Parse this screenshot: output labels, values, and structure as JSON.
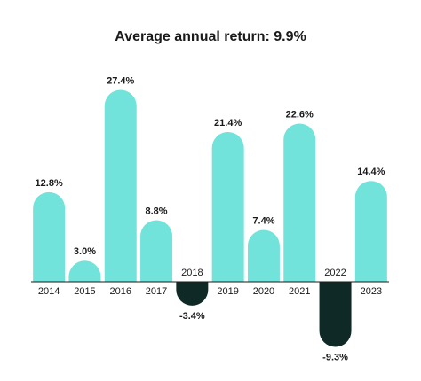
{
  "chart_data": {
    "type": "bar",
    "title": "Average annual return: 9.9%",
    "categories": [
      "2014",
      "2015",
      "2016",
      "2017",
      "2018",
      "2019",
      "2020",
      "2021",
      "2022",
      "2023"
    ],
    "values": [
      12.8,
      3.0,
      27.4,
      8.8,
      -3.4,
      21.4,
      7.4,
      22.6,
      -9.3,
      14.4
    ],
    "value_labels": [
      "12.8%",
      "3.0%",
      "27.4%",
      "8.8%",
      "-3.4%",
      "21.4%",
      "7.4%",
      "22.6%",
      "-9.3%",
      "14.4%"
    ],
    "color": "#72e3da",
    "negative_color": "#0f2927"
  }
}
